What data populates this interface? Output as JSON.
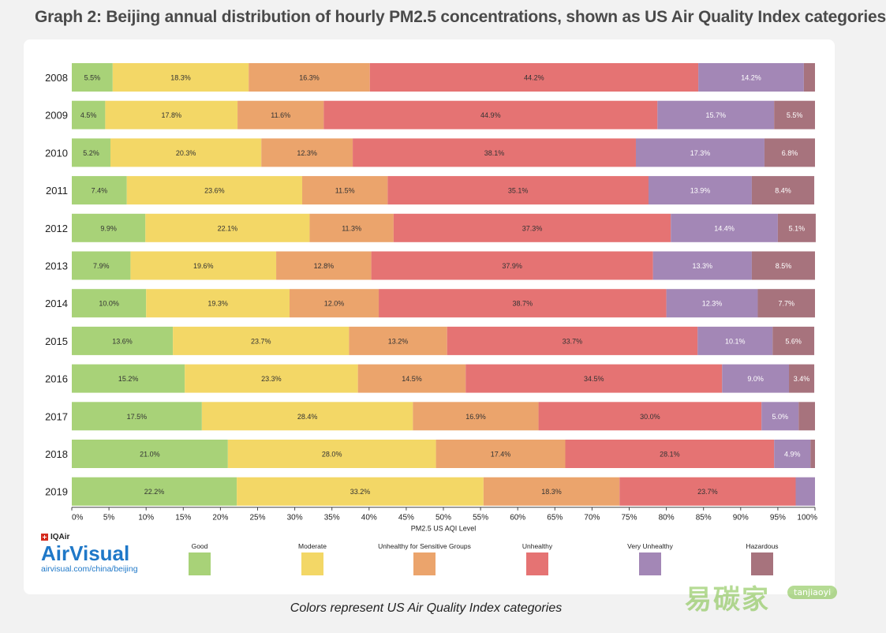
{
  "title": "Graph 2: Beijing annual distribution of hourly PM2.5 concentrations, shown as US Air Quality Index categories",
  "caption": "Colors represent US Air Quality Index categories",
  "logo": {
    "brand": "IQAir",
    "name": "AirVisual",
    "url": "airvisual.com/china/beijing"
  },
  "watermark": {
    "text": "易碳家",
    "badge": "tanjiaoyi"
  },
  "chart_data": {
    "type": "bar",
    "orientation": "horizontal",
    "stacked": true,
    "title": "Graph 2: Beijing annual distribution of hourly PM2.5 concentrations, shown as US Air Quality Index categories",
    "xlabel": "PM2.5 US AQI Level",
    "ylabel": "",
    "xlim": [
      0,
      100
    ],
    "xticks": [
      0,
      5,
      10,
      15,
      20,
      25,
      30,
      35,
      40,
      45,
      50,
      55,
      60,
      65,
      70,
      75,
      80,
      85,
      90,
      95,
      100
    ],
    "xtick_labels": [
      "0%",
      "5%",
      "10%",
      "15%",
      "20%",
      "25%",
      "30%",
      "35%",
      "40%",
      "45%",
      "50%",
      "55%",
      "60%",
      "65%",
      "70%",
      "75%",
      "80%",
      "85%",
      "90%",
      "95%",
      "100%"
    ],
    "categories": [
      "2008",
      "2009",
      "2010",
      "2011",
      "2012",
      "2013",
      "2014",
      "2015",
      "2016",
      "2017",
      "2018",
      "2019"
    ],
    "legend_position": "bottom",
    "grid": false,
    "series": [
      {
        "name": "Good",
        "color": "#a8d278",
        "values": [
          5.5,
          4.5,
          5.2,
          7.4,
          9.9,
          7.9,
          10.0,
          13.6,
          15.2,
          17.5,
          21.0,
          22.2
        ],
        "labels": [
          "5.5%",
          "4.5%",
          "5.2%",
          "7.4%",
          "9.9%",
          "7.9%",
          "10.0%",
          "13.6%",
          "15.2%",
          "17.5%",
          "21.0%",
          "22.2%"
        ]
      },
      {
        "name": "Moderate",
        "color": "#f3d766",
        "values": [
          18.3,
          17.8,
          20.3,
          23.6,
          22.1,
          19.6,
          19.3,
          23.7,
          23.3,
          28.4,
          28.0,
          33.2
        ],
        "labels": [
          "18.3%",
          "17.8%",
          "20.3%",
          "23.6%",
          "22.1%",
          "19.6%",
          "19.3%",
          "23.7%",
          "23.3%",
          "28.4%",
          "28.0%",
          "33.2%"
        ]
      },
      {
        "name": "Unhealthy for Sensitive Groups",
        "color": "#eba46c",
        "values": [
          16.3,
          11.6,
          12.3,
          11.5,
          11.3,
          12.8,
          12.0,
          13.2,
          14.5,
          16.9,
          17.4,
          18.3
        ],
        "labels": [
          "16.3%",
          "11.6%",
          "12.3%",
          "11.5%",
          "11.3%",
          "12.8%",
          "12.0%",
          "13.2%",
          "14.5%",
          "16.9%",
          "17.4%",
          "18.3%"
        ]
      },
      {
        "name": "Unhealthy",
        "color": "#e57373",
        "values": [
          44.2,
          44.9,
          38.1,
          35.1,
          37.3,
          37.9,
          38.7,
          33.7,
          34.5,
          30.0,
          28.1,
          23.7
        ],
        "labels": [
          "44.2%",
          "44.9%",
          "38.1%",
          "35.1%",
          "37.3%",
          "37.9%",
          "38.7%",
          "33.7%",
          "34.5%",
          "30.0%",
          "28.1%",
          "23.7%"
        ]
      },
      {
        "name": "Very Unhealthy",
        "color": "#a387b6",
        "values": [
          14.2,
          15.7,
          17.3,
          13.9,
          14.4,
          13.3,
          12.3,
          10.1,
          9.0,
          5.0,
          4.9,
          2.6
        ],
        "labels": [
          "14.2%",
          "15.7%",
          "17.3%",
          "13.9%",
          "14.4%",
          "13.3%",
          "12.3%",
          "10.1%",
          "9.0%",
          "5.0%",
          "4.9%",
          ""
        ]
      },
      {
        "name": "Hazardous",
        "color": "#a7737d",
        "values": [
          1.5,
          5.5,
          6.8,
          8.4,
          5.1,
          8.5,
          7.7,
          5.6,
          3.4,
          2.2,
          0.6,
          0.0
        ],
        "labels": [
          "",
          "5.5%",
          "6.8%",
          "8.4%",
          "5.1%",
          "8.5%",
          "7.7%",
          "5.6%",
          "3.4%",
          "",
          "",
          ""
        ]
      }
    ]
  }
}
